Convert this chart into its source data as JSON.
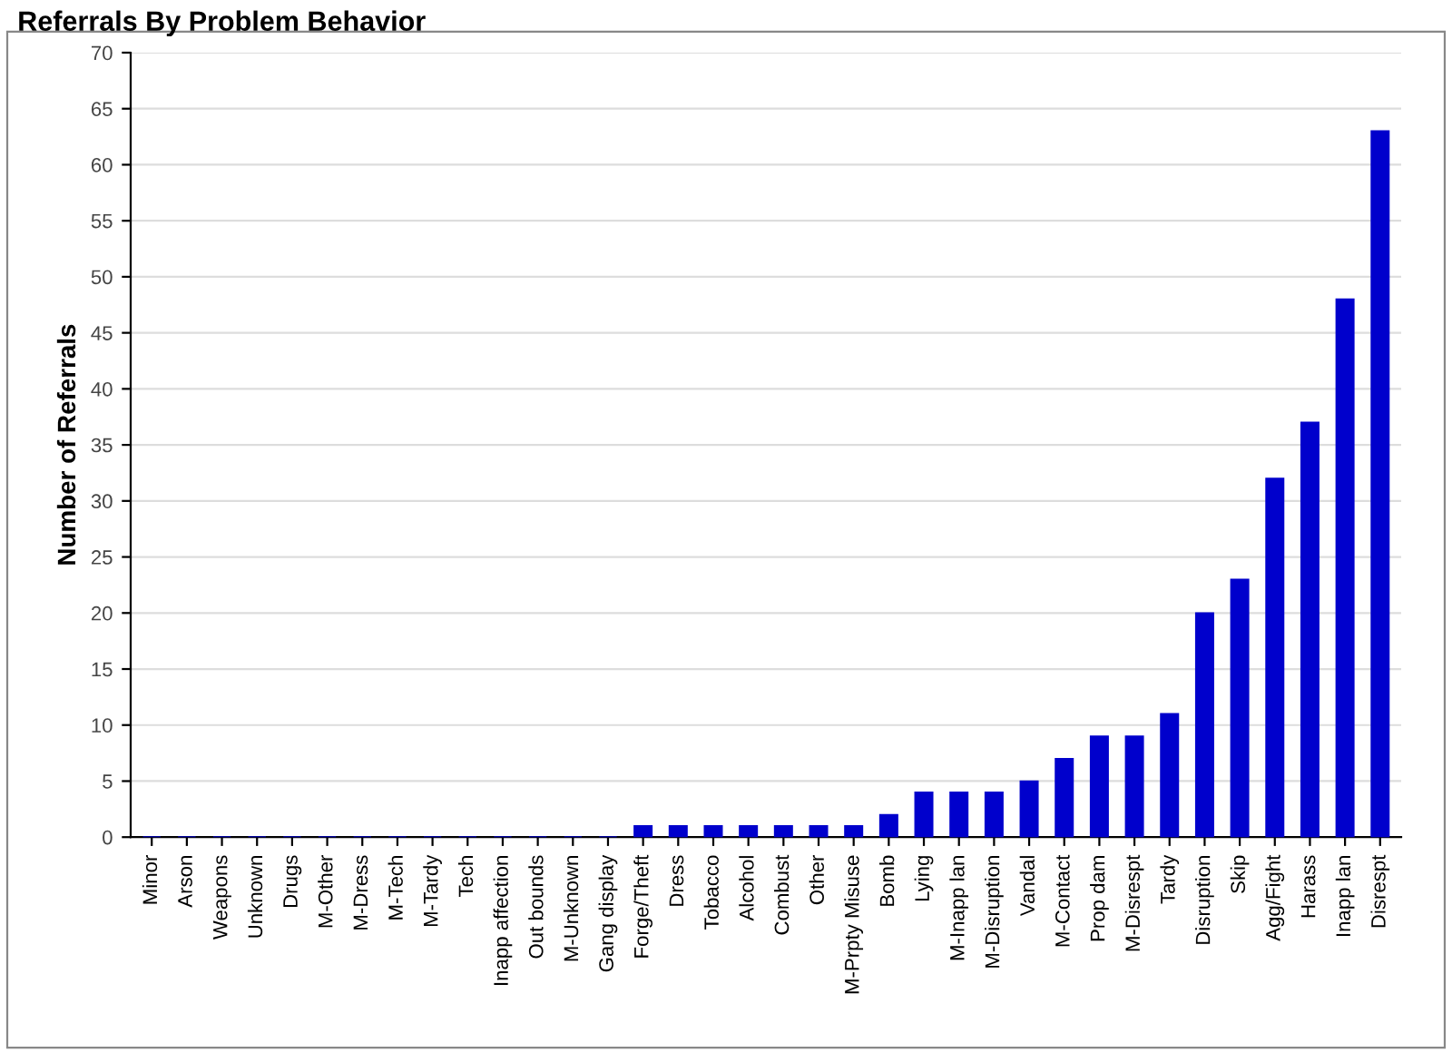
{
  "chart_data": {
    "type": "bar",
    "title": "Referrals By Problem Behavior",
    "ylabel": "Number of Referrals",
    "categories": [
      "Minor",
      "Arson",
      "Weapons",
      "Unknown",
      "Drugs",
      "M-Other",
      "M-Dress",
      "M-Tech",
      "M-Tardy",
      "Tech",
      "Inapp affection",
      "Out bounds",
      "M-Unknown",
      "Gang display",
      "Forge/Theft",
      "Dress",
      "Tobacco",
      "Alcohol",
      "Combust",
      "Other",
      "M-Prpty Misuse",
      "Bomb",
      "Lying",
      "M-Inapp lan",
      "M-Disruption",
      "Vandal",
      "M-Contact",
      "Prop dam",
      "M-Disrespt",
      "Tardy",
      "Disruption",
      "Skip",
      "Agg/Fight",
      "Harass",
      "Inapp lan",
      "Disrespt"
    ],
    "values": [
      0,
      0,
      0,
      0,
      0,
      0,
      0,
      0,
      0,
      0,
      0,
      0,
      0,
      0,
      1,
      1,
      1,
      1,
      1,
      1,
      1,
      2,
      4,
      4,
      4,
      5,
      7,
      9,
      9,
      11,
      20,
      23,
      32,
      37,
      48,
      63
    ],
    "color": "#0000cc",
    "ylim": [
      0,
      70
    ],
    "yticks": [
      0,
      5,
      10,
      15,
      20,
      25,
      30,
      35,
      40,
      45,
      50,
      55,
      60,
      65,
      70
    ],
    "grid": "y",
    "legend": false
  }
}
